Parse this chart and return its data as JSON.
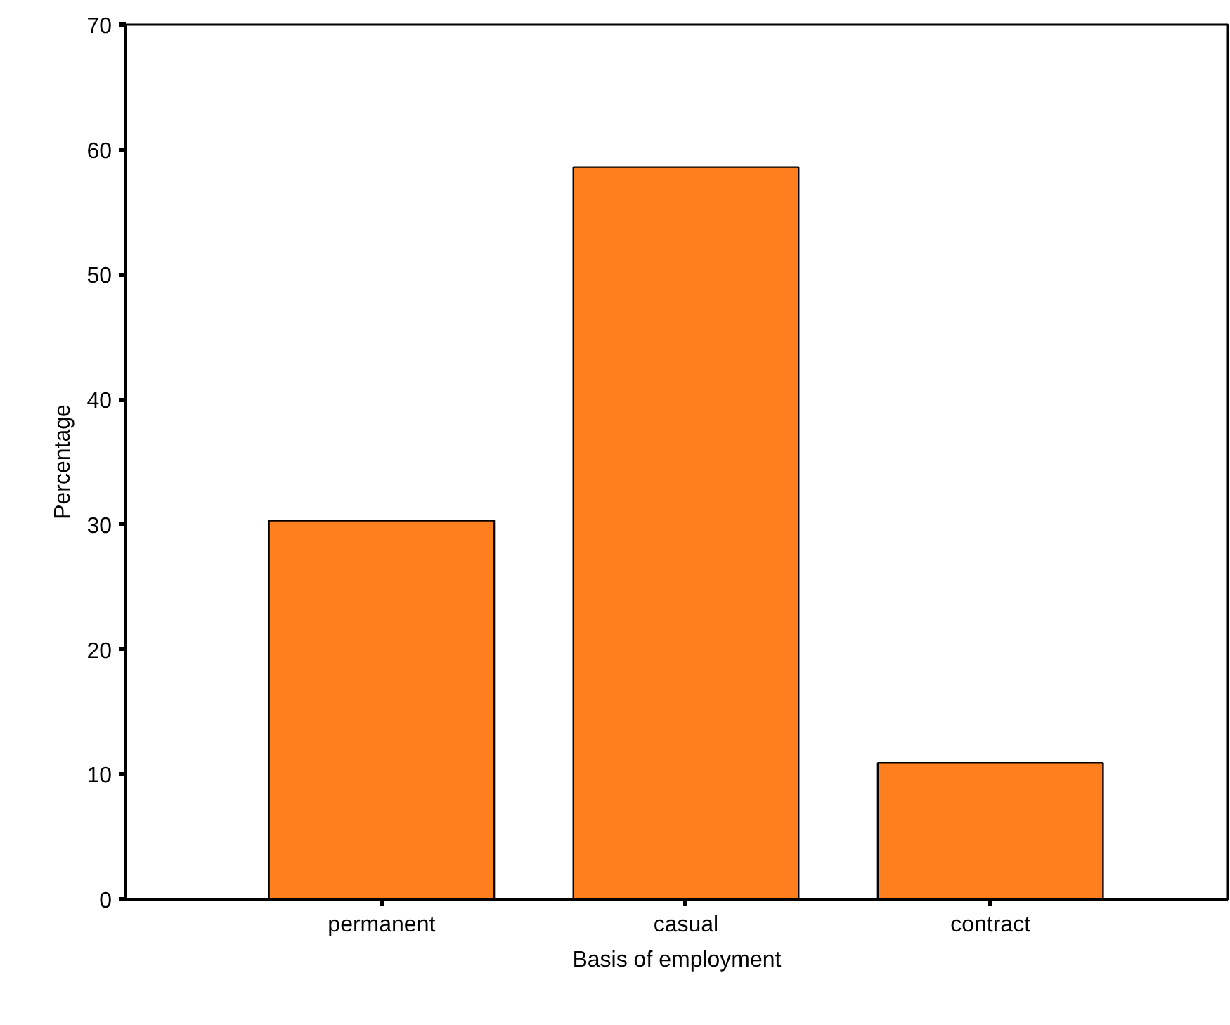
{
  "chart_data": {
    "type": "bar",
    "xlabel": "Basis of employment",
    "ylabel": "Percentage",
    "categories": [
      "permanent",
      "casual",
      "contract"
    ],
    "values": [
      30.3,
      58.6,
      10.9
    ],
    "color": "#ff7f1f",
    "ylim": [
      0,
      70
    ],
    "yticks": [
      0,
      10,
      20,
      30,
      40,
      50,
      60,
      70
    ],
    "grid": false
  }
}
